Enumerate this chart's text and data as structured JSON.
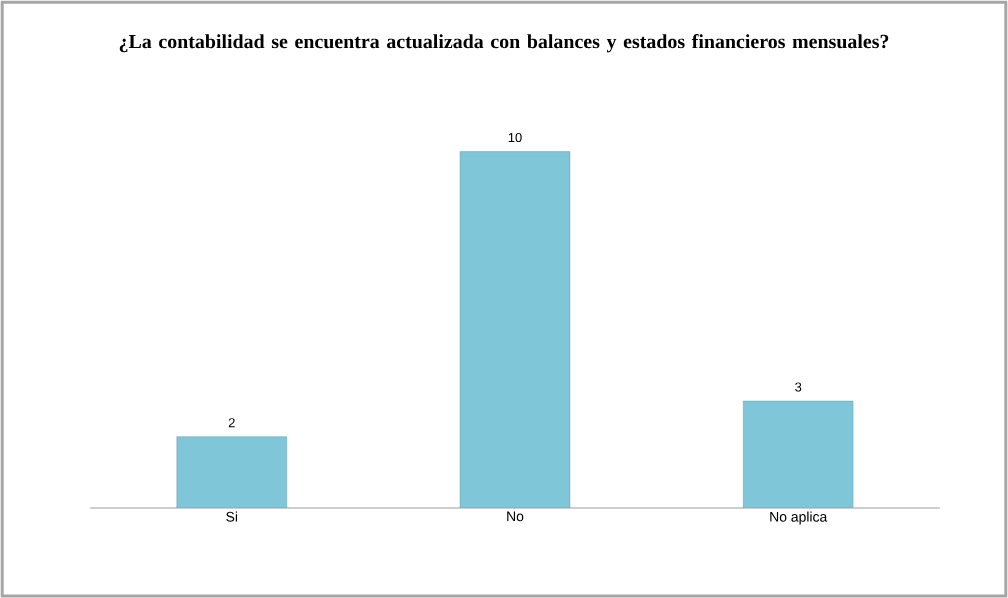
{
  "chart_data": {
    "type": "bar",
    "title": "¿La contabilidad se encuentra actualizada con balances y estados financieros mensuales?",
    "categories": [
      "Si",
      "No",
      "No aplica"
    ],
    "values": [
      2,
      10,
      3
    ],
    "color": "#7fc7d8",
    "data_labels": true
  }
}
